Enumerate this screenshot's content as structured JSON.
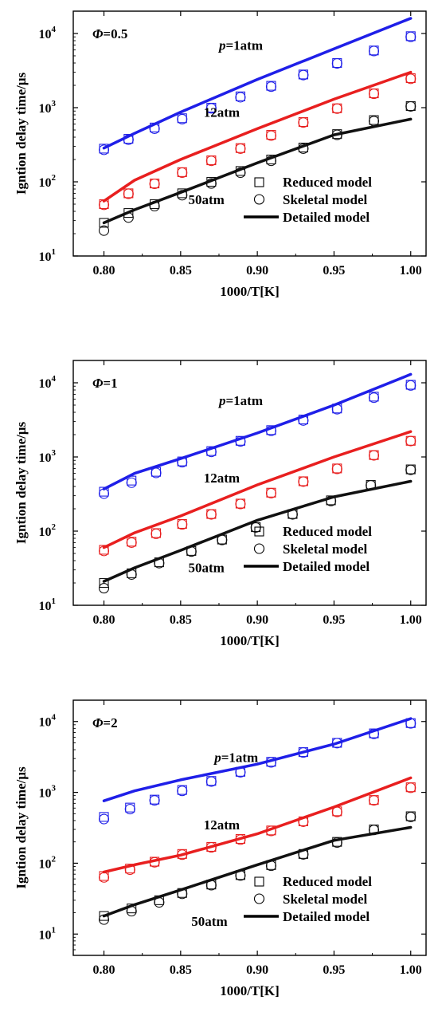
{
  "chart_data": [
    {
      "type": "scatter",
      "phi_symbol": "Φ",
      "phi_value": "=0.5",
      "xlabel": "1000/T[K]",
      "ylabel": "Igntion delay time/μs",
      "xlim": [
        0.78,
        1.01
      ],
      "ylim": [
        10,
        20000
      ],
      "yscale": "log",
      "xticks": [
        "0.80",
        "0.85",
        "0.90",
        "0.95",
        "1.00"
      ],
      "yticks": [
        {
          "base": "10",
          "exp": "1",
          "v": 10
        },
        {
          "base": "10",
          "exp": "2",
          "v": 100
        },
        {
          "base": "10",
          "exp": "3",
          "v": 1000
        },
        {
          "base": "10",
          "exp": "4",
          "v": 10000
        }
      ],
      "annotations": [
        {
          "p": "p",
          "rest": "=1atm",
          "x": 0.875,
          "y": 6000
        },
        {
          "p": "",
          "rest": "12atm",
          "x": 0.865,
          "y": 750
        },
        {
          "p": "",
          "rest": "50atm",
          "x": 0.855,
          "y": 50
        }
      ],
      "series": [
        {
          "name": "p=1atm",
          "color": "#1f1fe8",
          "line_x": [
            0.8,
            0.82,
            0.85,
            0.9,
            0.95,
            1.0
          ],
          "line_y": [
            285,
            450,
            870,
            2400,
            6200,
            16000
          ],
          "x": [
            0.8,
            0.816,
            0.833,
            0.851,
            0.87,
            0.889,
            0.909,
            0.93,
            0.952,
            0.976,
            1.0
          ],
          "reduced": [
            280,
            380,
            540,
            720,
            1000,
            1420,
            1970,
            2800,
            4000,
            5900,
            9200
          ],
          "skeletal": [
            270,
            370,
            520,
            700,
            980,
            1380,
            1920,
            2750,
            3950,
            5800,
            9000
          ]
        },
        {
          "name": "12atm",
          "color": "#e81f1f",
          "line_x": [
            0.8,
            0.82,
            0.85,
            0.9,
            0.95,
            1.0
          ],
          "line_y": [
            55,
            105,
            200,
            520,
            1300,
            3000
          ],
          "x": [
            0.8,
            0.816,
            0.833,
            0.851,
            0.87,
            0.889,
            0.909,
            0.93,
            0.952,
            0.976,
            1.0
          ],
          "reduced": [
            50,
            70,
            95,
            135,
            195,
            285,
            430,
            640,
            980,
            1560,
            2500
          ],
          "skeletal": [
            49,
            69,
            94,
            133,
            192,
            280,
            420,
            630,
            970,
            1540,
            2450
          ]
        },
        {
          "name": "50atm",
          "color": "#111111",
          "line_x": [
            0.8,
            0.82,
            0.85,
            0.9,
            0.95,
            1.0
          ],
          "line_y": [
            28,
            42,
            72,
            180,
            430,
            700
          ],
          "x": [
            0.8,
            0.816,
            0.833,
            0.851,
            0.87,
            0.889,
            0.909,
            0.93,
            0.952,
            0.976,
            1.0
          ],
          "reduced": [
            28,
            38,
            50,
            70,
            100,
            140,
            200,
            290,
            440,
            680,
            1050
          ],
          "skeletal": [
            22,
            33,
            47,
            66,
            95,
            133,
            192,
            280,
            430,
            660,
            1040
          ]
        }
      ],
      "legend": {
        "placement": "bottom-right",
        "reduced": "Reduced model",
        "skeletal": "Skeletal model",
        "detailed": "Detailed model"
      }
    },
    {
      "type": "scatter",
      "phi_symbol": "Φ",
      "phi_value": "=1",
      "xlabel": "1000/T[K]",
      "ylabel": "Igntion delay time/μs",
      "xlim": [
        0.78,
        1.01
      ],
      "ylim": [
        10,
        20000
      ],
      "yscale": "log",
      "xticks": [
        "0.80",
        "0.85",
        "0.90",
        "0.95",
        "1.00"
      ],
      "yticks": [
        {
          "base": "10",
          "exp": "1",
          "v": 10
        },
        {
          "base": "10",
          "exp": "2",
          "v": 100
        },
        {
          "base": "10",
          "exp": "3",
          "v": 1000
        },
        {
          "base": "10",
          "exp": "4",
          "v": 10000
        }
      ],
      "annotations": [
        {
          "p": "p",
          "rest": "=1atm",
          "x": 0.875,
          "y": 5000
        },
        {
          "p": "",
          "rest": "12atm",
          "x": 0.865,
          "y": 450
        },
        {
          "p": "",
          "rest": "50atm",
          "x": 0.855,
          "y": 28
        }
      ],
      "series": [
        {
          "name": "p=1atm",
          "color": "#1f1fe8",
          "line_x": [
            0.8,
            0.82,
            0.85,
            0.9,
            0.95,
            1.0
          ],
          "line_y": [
            370,
            600,
            950,
            2100,
            5000,
            13000
          ],
          "x": [
            0.8,
            0.818,
            0.834,
            0.851,
            0.87,
            0.889,
            0.909,
            0.93,
            0.952,
            0.976,
            1.0
          ],
          "reduced": [
            340,
            480,
            630,
            870,
            1200,
            1650,
            2300,
            3200,
            4500,
            6500,
            9400
          ],
          "skeletal": [
            320,
            450,
            610,
            850,
            1170,
            1620,
            2250,
            3100,
            4400,
            6300,
            9200
          ]
        },
        {
          "name": "12atm",
          "color": "#e81f1f",
          "line_x": [
            0.8,
            0.82,
            0.85,
            0.9,
            0.95,
            1.0
          ],
          "line_y": [
            60,
            95,
            160,
            420,
            1000,
            2200
          ],
          "x": [
            0.8,
            0.818,
            0.834,
            0.851,
            0.87,
            0.889,
            0.909,
            0.93,
            0.952,
            0.976,
            1.0
          ],
          "reduced": [
            56,
            72,
            94,
            125,
            170,
            235,
            330,
            470,
            700,
            1060,
            1650
          ],
          "skeletal": [
            54,
            70,
            92,
            123,
            168,
            232,
            325,
            465,
            690,
            1050,
            1640
          ]
        },
        {
          "name": "50atm",
          "color": "#111111",
          "line_x": [
            0.8,
            0.82,
            0.85,
            0.9,
            0.95,
            1.0
          ],
          "line_y": [
            21,
            32,
            55,
            140,
            290,
            470
          ],
          "x": [
            0.8,
            0.818,
            0.836,
            0.857,
            0.877,
            0.899,
            0.923,
            0.948,
            0.974,
            1.0
          ],
          "reduced": [
            20,
            27,
            38,
            54,
            77,
            113,
            170,
            260,
            420,
            680
          ],
          "skeletal": [
            17,
            26,
            37,
            53,
            76,
            112,
            168,
            255,
            415,
            670
          ]
        }
      ],
      "legend": {
        "placement": "bottom-right",
        "reduced": "Reduced model",
        "skeletal": "Skeletal model",
        "detailed": "Detailed model"
      }
    },
    {
      "type": "scatter",
      "phi_symbol": "Φ",
      "phi_value": "=2",
      "xlabel": "1000/T[K]",
      "ylabel": "Igntion delay time/μs",
      "xlim": [
        0.78,
        1.01
      ],
      "ylim": [
        5,
        20000
      ],
      "yscale": "log",
      "xticks": [
        "0.80",
        "0.85",
        "0.90",
        "0.95",
        "1.00"
      ],
      "yticks": [
        {
          "base": "10",
          "exp": "1",
          "v": 10
        },
        {
          "base": "10",
          "exp": "2",
          "v": 100
        },
        {
          "base": "10",
          "exp": "3",
          "v": 1000
        },
        {
          "base": "10",
          "exp": "4",
          "v": 10000
        }
      ],
      "annotations": [
        {
          "p": "p",
          "rest": "=1atm",
          "x": 0.872,
          "y": 2700
        },
        {
          "p": "",
          "rest": "12atm",
          "x": 0.865,
          "y": 300
        },
        {
          "p": "",
          "rest": "50atm",
          "x": 0.857,
          "y": 13
        }
      ],
      "series": [
        {
          "name": "p=1atm",
          "color": "#1f1fe8",
          "line_x": [
            0.8,
            0.82,
            0.85,
            0.9,
            0.95,
            1.0
          ],
          "line_y": [
            760,
            1050,
            1500,
            2500,
            4800,
            11000
          ],
          "x": [
            0.8,
            0.817,
            0.833,
            0.851,
            0.87,
            0.889,
            0.909,
            0.93,
            0.952,
            0.976,
            1.0
          ],
          "reduced": [
            450,
            610,
            790,
            1080,
            1450,
            1950,
            2700,
            3700,
            5000,
            6800,
            9500
          ],
          "skeletal": [
            420,
            580,
            770,
            1050,
            1420,
            1920,
            2650,
            3650,
            4950,
            6700,
            9400
          ]
        },
        {
          "name": "12atm",
          "color": "#e81f1f",
          "line_x": [
            0.8,
            0.82,
            0.85,
            0.9,
            0.95,
            1.0
          ],
          "line_y": [
            75,
            95,
            130,
            260,
            620,
            1600
          ],
          "x": [
            0.8,
            0.817,
            0.833,
            0.851,
            0.87,
            0.889,
            0.909,
            0.93,
            0.952,
            0.976,
            1.0
          ],
          "reduced": [
            66,
            84,
            105,
            135,
            170,
            220,
            290,
            390,
            540,
            780,
            1180
          ],
          "skeletal": [
            63,
            81,
            103,
            132,
            167,
            215,
            285,
            385,
            530,
            770,
            1160
          ]
        },
        {
          "name": "50atm",
          "color": "#111111",
          "line_x": [
            0.8,
            0.82,
            0.85,
            0.9,
            0.95,
            1.0
          ],
          "line_y": [
            18,
            26,
            42,
            95,
            210,
            320
          ],
          "x": [
            0.8,
            0.818,
            0.836,
            0.851,
            0.87,
            0.889,
            0.909,
            0.93,
            0.952,
            0.976,
            1.0
          ],
          "reduced": [
            18,
            23,
            30,
            38,
            50,
            68,
            94,
            135,
            200,
            300,
            460
          ],
          "skeletal": [
            16,
            21,
            28,
            37,
            49,
            67,
            92,
            133,
            196,
            295,
            450
          ]
        }
      ],
      "legend": {
        "placement": "bottom-right",
        "reduced": "Reduced model",
        "skeletal": "Skeletal model",
        "detailed": "Detailed model"
      }
    }
  ]
}
